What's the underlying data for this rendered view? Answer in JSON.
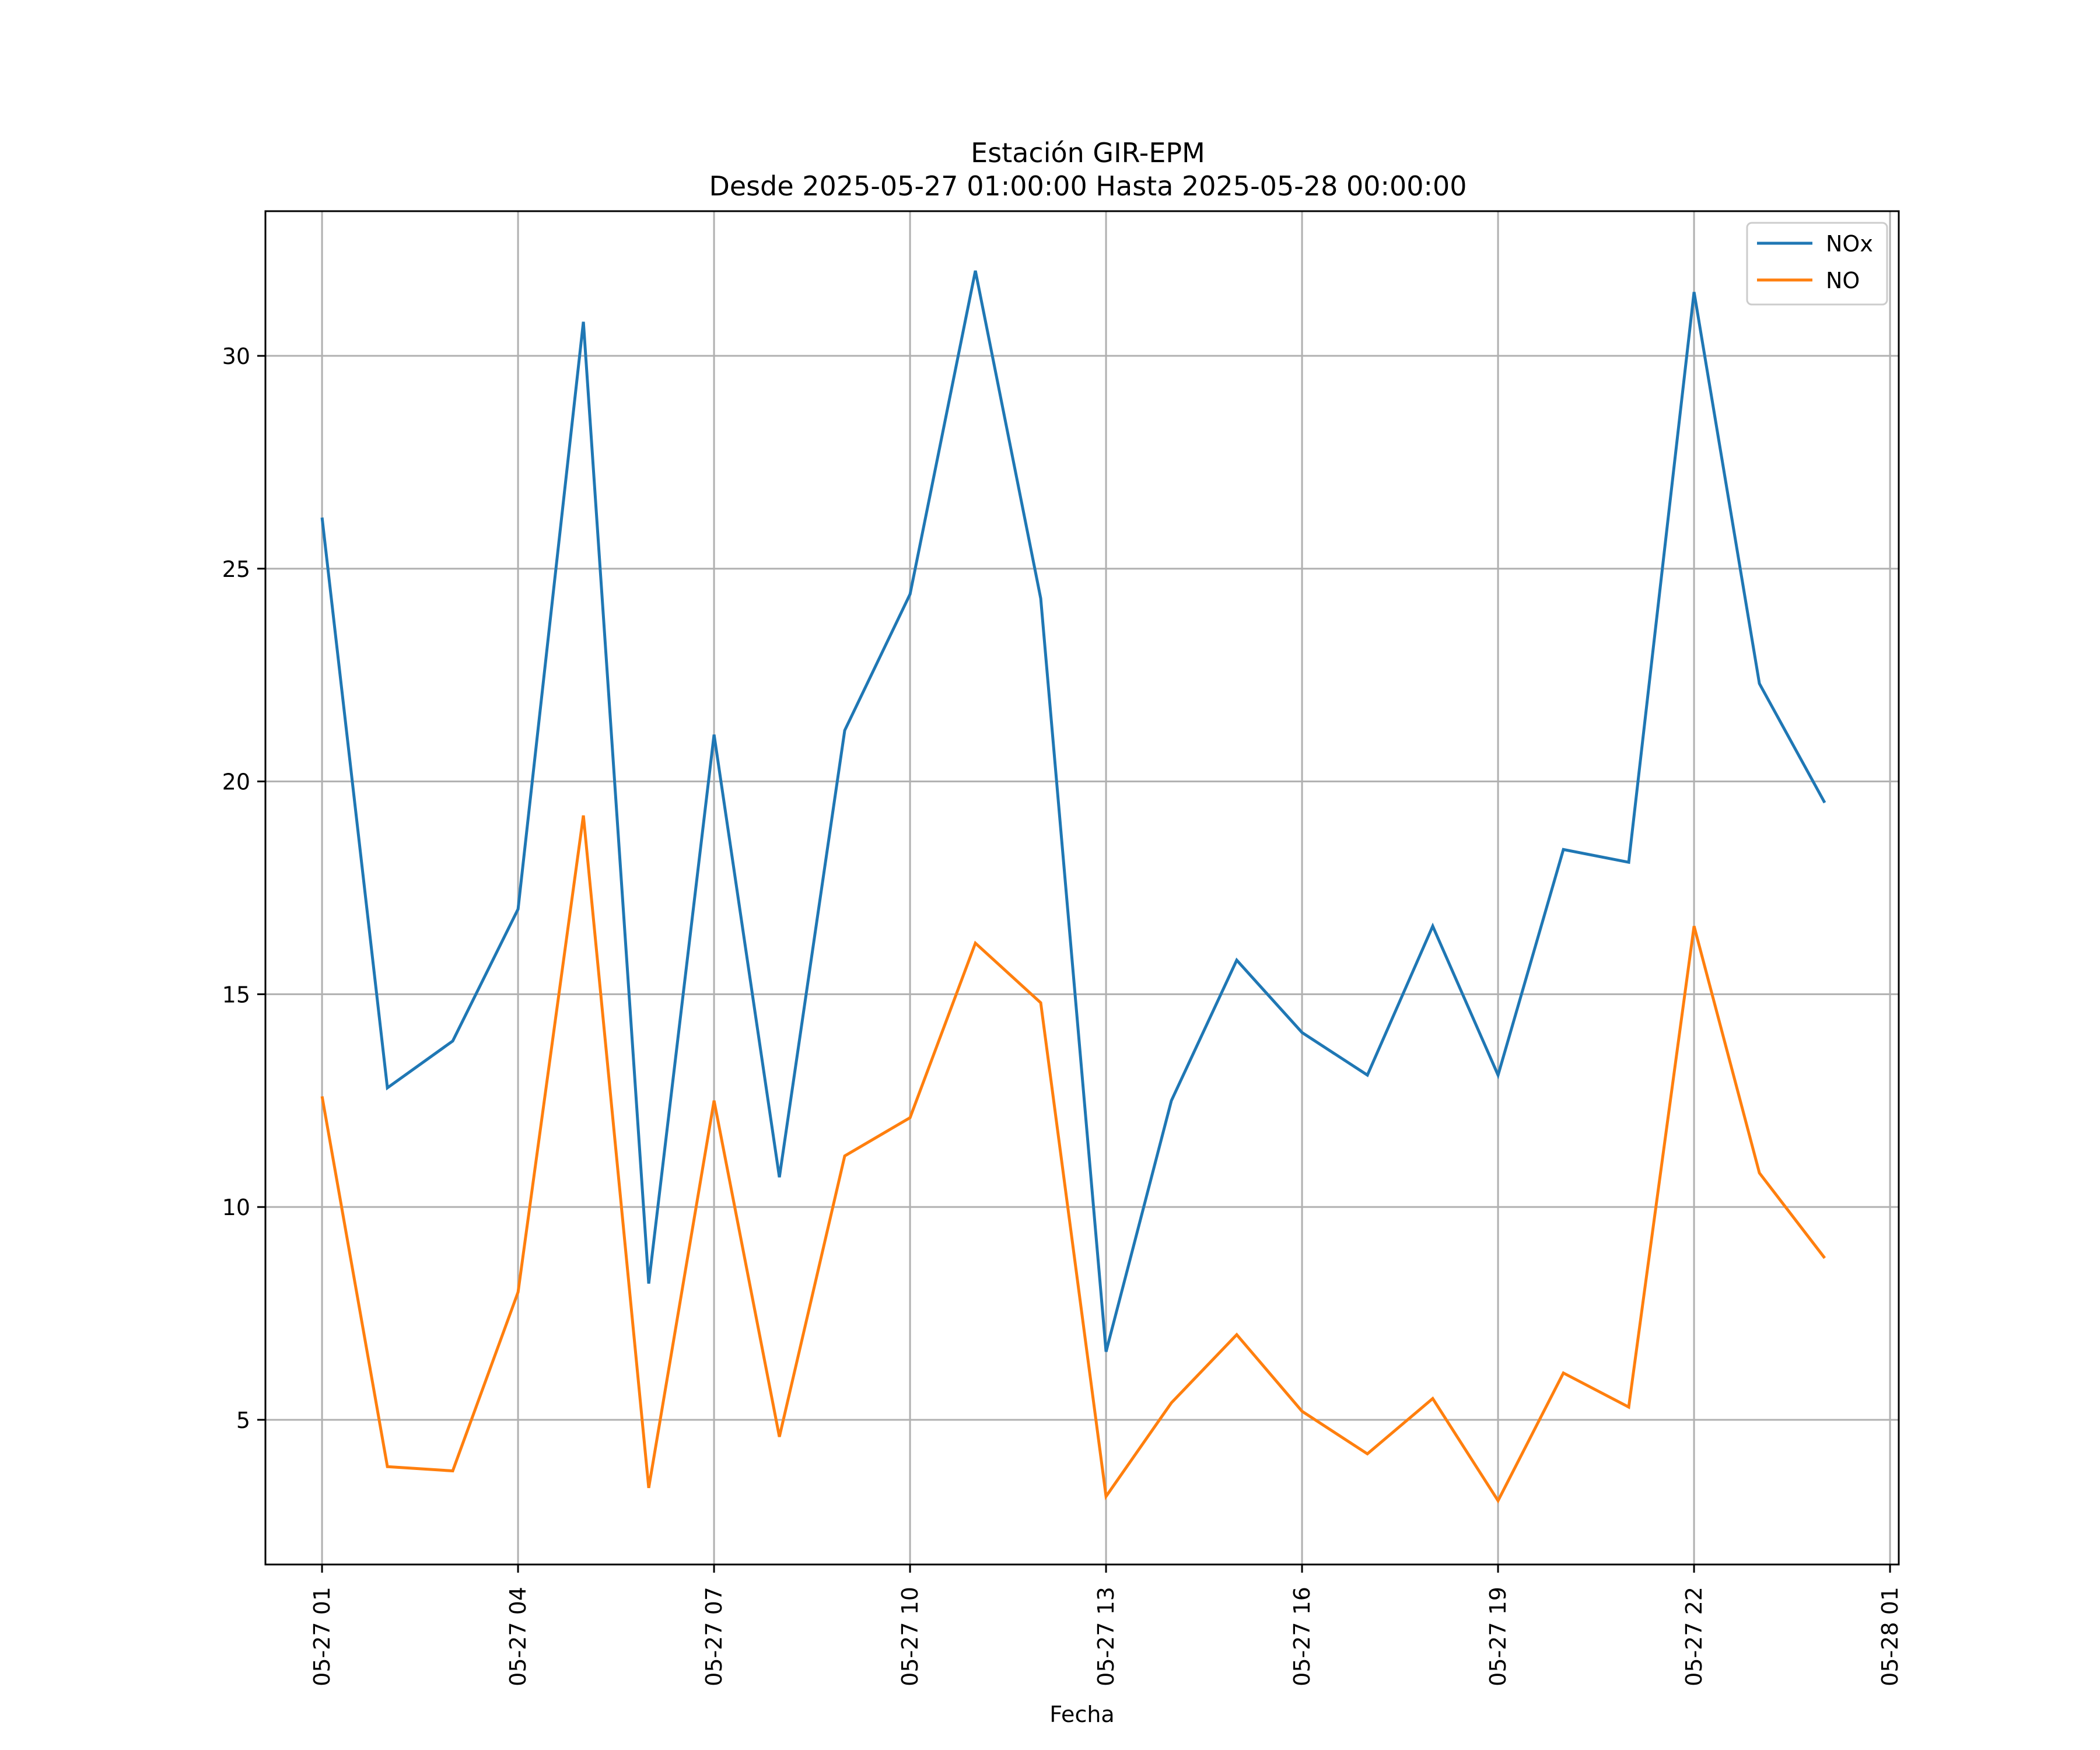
{
  "chart_data": {
    "type": "line",
    "title": "Estación GIR-EPM",
    "subtitle": "Desde 2025-05-27 01:00:00 Hasta 2025-05-28 00:00:00",
    "xlabel": "Fecha",
    "ylabel": "",
    "x": [
      "05-27 01",
      "05-27 02",
      "05-27 03",
      "05-27 04",
      "05-27 05",
      "05-27 06",
      "05-27 07",
      "05-27 08",
      "05-27 09",
      "05-27 10",
      "05-27 11",
      "05-27 12",
      "05-27 13",
      "05-27 14",
      "05-27 15",
      "05-27 16",
      "05-27 17",
      "05-27 18",
      "05-27 19",
      "05-27 20",
      "05-27 21",
      "05-27 22",
      "05-27 23",
      "05-28 00"
    ],
    "x_ticks": [
      "05-27 01",
      "05-27 04",
      "05-27 07",
      "05-27 10",
      "05-27 13",
      "05-27 16",
      "05-27 19",
      "05-27 22",
      "05-28 01"
    ],
    "xlim": [
      "05-27 00:08",
      "05-28 01:08"
    ],
    "y_ticks": [
      5,
      10,
      15,
      20,
      25,
      30
    ],
    "ylim": [
      1.6,
      33.4
    ],
    "grid": true,
    "legend_position": "top-right",
    "series": [
      {
        "name": "NOx",
        "color": "#1f77b4",
        "values": [
          26.2,
          12.8,
          13.9,
          17.0,
          30.8,
          8.2,
          21.1,
          10.7,
          21.2,
          24.4,
          32.0,
          24.3,
          6.6,
          12.5,
          15.8,
          14.1,
          13.1,
          16.6,
          13.1,
          18.4,
          18.1,
          31.5,
          22.3,
          19.5
        ]
      },
      {
        "name": "NO",
        "color": "#ff7f0e",
        "values": [
          12.6,
          3.9,
          3.8,
          8.0,
          19.2,
          3.4,
          12.5,
          4.6,
          11.2,
          12.1,
          16.2,
          14.8,
          3.2,
          5.4,
          7.0,
          5.2,
          4.2,
          5.5,
          3.1,
          6.1,
          5.3,
          16.6,
          10.8,
          8.8
        ]
      }
    ]
  }
}
